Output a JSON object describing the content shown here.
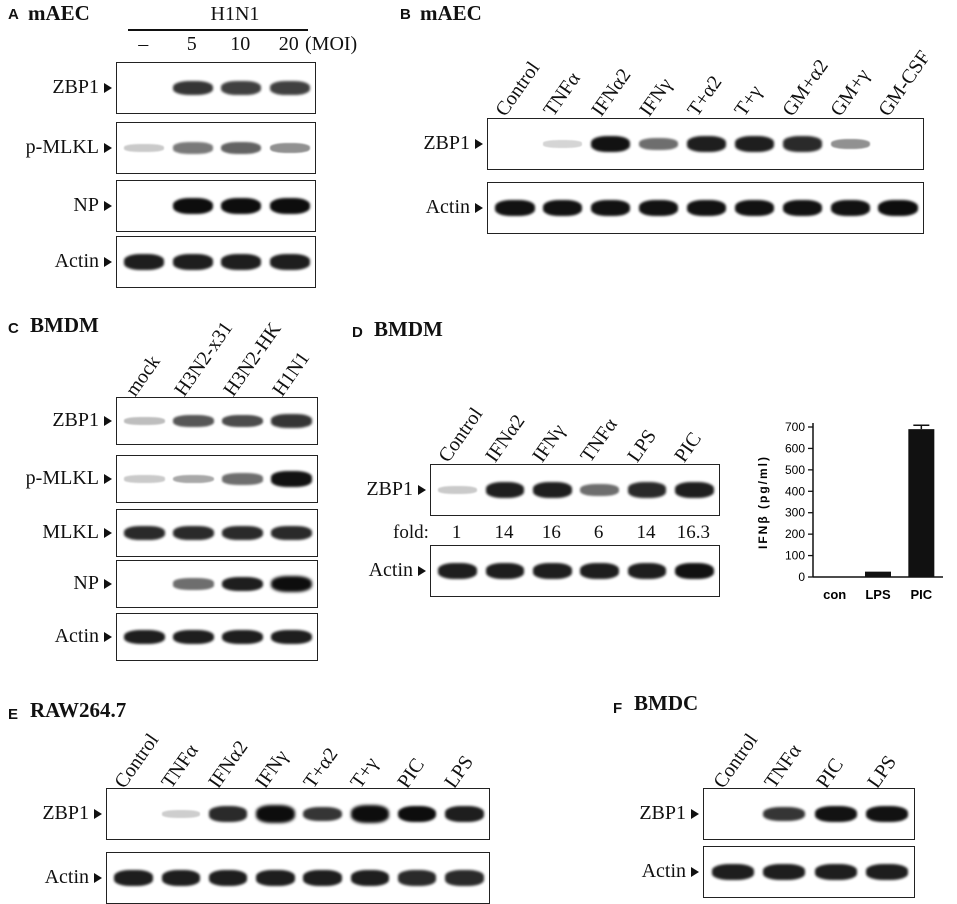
{
  "panel_a": {
    "letter": "A",
    "title": "mAEC",
    "treatment": "H1N1",
    "lanes": [
      "–",
      "5",
      "10",
      "20"
    ],
    "unit": "(MOI)",
    "rows": [
      {
        "label": "ZBP1",
        "bands": [
          0,
          0.75,
          0.7,
          0.7
        ]
      },
      {
        "label": "p-MLKL",
        "bands": [
          0.1,
          0.45,
          0.55,
          0.35
        ]
      },
      {
        "label": "NP",
        "bands": [
          0,
          0.95,
          0.95,
          0.95
        ]
      },
      {
        "label": "Actin",
        "bands": [
          0.85,
          0.85,
          0.85,
          0.85
        ]
      }
    ]
  },
  "panel_b": {
    "letter": "B",
    "title": "mAEC",
    "lanes": [
      "Control",
      "TNFα",
      "IFNα2",
      "IFNγ",
      "T+α2",
      "T+γ",
      "GM+α2",
      "GM+γ",
      "GM-CSF"
    ],
    "rows": [
      {
        "label": "ZBP1",
        "bands": [
          0,
          0.05,
          0.9,
          0.5,
          0.85,
          0.85,
          0.8,
          0.35,
          0
        ]
      },
      {
        "label": "Actin",
        "bands": [
          0.9,
          0.9,
          0.9,
          0.9,
          0.9,
          0.9,
          0.9,
          0.9,
          0.95
        ]
      }
    ]
  },
  "panel_c": {
    "letter": "C",
    "title": "BMDM",
    "lanes": [
      "mock",
      "H3N2-x31",
      "H3N2-HK",
      "H1N1"
    ],
    "rows": [
      {
        "label": "ZBP1",
        "bands": [
          0.15,
          0.6,
          0.65,
          0.75
        ]
      },
      {
        "label": "p-MLKL",
        "bands": [
          0.1,
          0.25,
          0.5,
          0.9
        ]
      },
      {
        "label": "MLKL",
        "bands": [
          0.8,
          0.8,
          0.8,
          0.8
        ]
      },
      {
        "label": "NP",
        "bands": [
          0,
          0.5,
          0.85,
          1.0
        ]
      },
      {
        "label": "Actin",
        "bands": [
          0.85,
          0.85,
          0.85,
          0.85
        ]
      }
    ]
  },
  "panel_d": {
    "letter": "D",
    "title": "BMDM",
    "lanes": [
      "Control",
      "IFNα2",
      "IFNγ",
      "TNFα",
      "LPS",
      "PIC"
    ],
    "fold_label": "fold:",
    "fold": [
      "1",
      "14",
      "16",
      "6",
      "14",
      "16.3"
    ],
    "rows": [
      {
        "label": "ZBP1",
        "bands": [
          0.1,
          0.85,
          0.85,
          0.5,
          0.8,
          0.85
        ]
      },
      {
        "label": "Actin",
        "bands": [
          0.85,
          0.85,
          0.85,
          0.85,
          0.85,
          0.9
        ]
      }
    ]
  },
  "panel_e": {
    "letter": "E",
    "title": "RAW264.7",
    "lanes": [
      "Control",
      "TNFα",
      "IFNα2",
      "IFNγ",
      "T+α2",
      "T+γ",
      "PIC",
      "LPS"
    ],
    "rows": [
      {
        "label": "ZBP1",
        "bands": [
          0,
          0.08,
          0.8,
          1.0,
          0.75,
          1.0,
          0.95,
          0.85
        ]
      },
      {
        "label": "Actin",
        "bands": [
          0.85,
          0.85,
          0.85,
          0.85,
          0.85,
          0.85,
          0.8,
          0.8
        ]
      }
    ]
  },
  "panel_f": {
    "letter": "F",
    "title": "BMDC",
    "lanes": [
      "Control",
      "TNFα",
      "PIC",
      "LPS"
    ],
    "rows": [
      {
        "label": "ZBP1",
        "bands": [
          0,
          0.75,
          0.9,
          0.9
        ]
      },
      {
        "label": "Actin",
        "bands": [
          0.85,
          0.85,
          0.85,
          0.85
        ]
      }
    ]
  },
  "chart_data": {
    "type": "bar",
    "categories": [
      "con",
      "LPS",
      "PIC"
    ],
    "values": [
      0,
      25,
      690
    ],
    "errors": [
      0,
      0,
      18
    ],
    "ylabel": "IFNβ (pg/ml)",
    "ylim": [
      0,
      700
    ],
    "yticks": [
      "0",
      "100",
      "200",
      "300",
      "400",
      "500",
      "600",
      "700"
    ],
    "grid": false
  }
}
